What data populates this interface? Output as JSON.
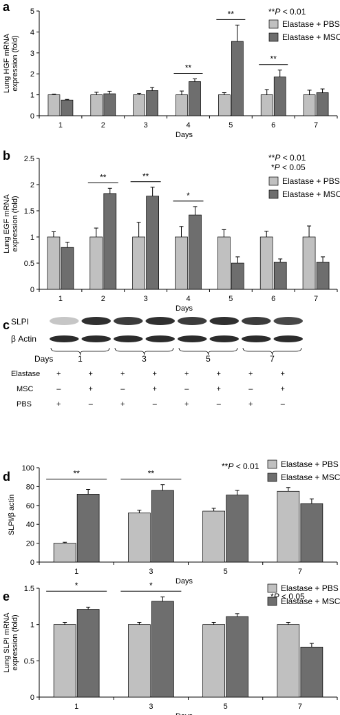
{
  "panels": {
    "a": "a",
    "b": "b",
    "c": "c",
    "d": "d",
    "e": "e"
  },
  "legend_pbs": "Elastase + PBS",
  "legend_msc": "Elastase + MSC",
  "colors": {
    "pbs": "#c0c0c0",
    "msc": "#6e6e6e",
    "blot_band": "#1a1a1a"
  },
  "blot": {
    "row_labels": [
      "SLPI",
      "β Actin"
    ],
    "days_label": "Days",
    "days": [
      "1",
      "3",
      "5",
      "7"
    ],
    "conditions": [
      {
        "name": "Elastase",
        "marks": [
          "+",
          "+",
          "+",
          "+",
          "+",
          "+",
          "+",
          "+"
        ]
      },
      {
        "name": "MSC",
        "marks": [
          "–",
          "+",
          "–",
          "+",
          "–",
          "+",
          "–",
          "+"
        ]
      },
      {
        "name": "PBS",
        "marks": [
          "+",
          "–",
          "+",
          "–",
          "+",
          "–",
          "+",
          "–"
        ]
      }
    ]
  },
  "chart_data": [
    {
      "panel": "a",
      "type": "bar",
      "ylabel": "Lung HGF mRNA expression (fold)",
      "xlabel": "Days",
      "ylim": [
        0,
        5
      ],
      "yticks": [
        "0",
        "1",
        "2",
        "3",
        "4",
        "5"
      ],
      "categories": [
        "1",
        "2",
        "3",
        "4",
        "5",
        "6",
        "7"
      ],
      "series": [
        {
          "name": "Elastase + PBS",
          "values": [
            1.0,
            1.0,
            1.0,
            1.0,
            1.0,
            1.0,
            1.0
          ],
          "errors": [
            0.03,
            0.12,
            0.07,
            0.18,
            0.1,
            0.25,
            0.22
          ]
        },
        {
          "name": "Elastase + MSC",
          "values": [
            0.75,
            1.05,
            1.2,
            1.63,
            3.55,
            1.85,
            1.1
          ],
          "errors": [
            0.03,
            0.12,
            0.15,
            0.13,
            0.78,
            0.33,
            0.18
          ]
        }
      ],
      "significance": [
        {
          "category": "4",
          "label": "**"
        },
        {
          "category": "5",
          "label": "**"
        },
        {
          "category": "6",
          "label": "**"
        }
      ],
      "pvalues": [
        "**P < 0.01"
      ]
    },
    {
      "panel": "b",
      "type": "bar",
      "ylabel": "Lung EGF mRNA expression (fold)",
      "xlabel": "Days",
      "ylim": [
        0,
        2.5
      ],
      "yticks": [
        "0",
        "0.5",
        "1",
        "1.5",
        "2",
        "2.5"
      ],
      "categories": [
        "1",
        "2",
        "3",
        "4",
        "5",
        "6",
        "7"
      ],
      "series": [
        {
          "name": "Elastase + PBS",
          "values": [
            1.0,
            1.0,
            1.0,
            1.0,
            1.0,
            1.0,
            1.0
          ],
          "errors": [
            0.1,
            0.17,
            0.28,
            0.2,
            0.14,
            0.11,
            0.21
          ]
        },
        {
          "name": "Elastase + MSC",
          "values": [
            0.8,
            1.83,
            1.78,
            1.42,
            0.5,
            0.52,
            0.52
          ],
          "errors": [
            0.1,
            0.1,
            0.17,
            0.16,
            0.12,
            0.06,
            0.1
          ]
        }
      ],
      "significance": [
        {
          "category": "2",
          "label": "**"
        },
        {
          "category": "3",
          "label": "**"
        },
        {
          "category": "4",
          "label": "*"
        }
      ],
      "pvalues": [
        "**P < 0.01",
        "*P < 0.05"
      ]
    },
    {
      "panel": "d",
      "type": "bar",
      "ylabel": "SLPI/β actin",
      "xlabel": "Days",
      "ylim": [
        0,
        100
      ],
      "yticks": [
        "0",
        "20",
        "40",
        "60",
        "80",
        "100"
      ],
      "categories": [
        "1",
        "3",
        "5",
        "7"
      ],
      "series": [
        {
          "name": "Elastase + PBS",
          "values": [
            20,
            52,
            54,
            75
          ],
          "errors": [
            1,
            3,
            3,
            4
          ]
        },
        {
          "name": "Elastase + MSC",
          "values": [
            72,
            76,
            71,
            62
          ],
          "errors": [
            5,
            6,
            5,
            5
          ]
        }
      ],
      "significance": [
        {
          "category": "1",
          "label": "**"
        },
        {
          "category": "3",
          "label": "**"
        }
      ],
      "pvalues": [
        "**P < 0.01"
      ]
    },
    {
      "panel": "e",
      "type": "bar",
      "ylabel": "Lung SLPI mRNA expression (fold)",
      "xlabel": "Days",
      "ylim": [
        0,
        1.5
      ],
      "yticks": [
        "0",
        "0.5",
        "1",
        "1.5"
      ],
      "categories": [
        "1",
        "3",
        "5",
        "7"
      ],
      "series": [
        {
          "name": "Elastase + PBS",
          "values": [
            1.0,
            1.0,
            1.0,
            1.0
          ],
          "errors": [
            0.03,
            0.03,
            0.03,
            0.03
          ]
        },
        {
          "name": "Elastase + MSC",
          "values": [
            1.21,
            1.32,
            1.11,
            0.69
          ],
          "errors": [
            0.03,
            0.06,
            0.04,
            0.05
          ]
        }
      ],
      "significance": [
        {
          "category": "1",
          "label": "*"
        },
        {
          "category": "3",
          "label": "*"
        }
      ],
      "pvalues": [
        "*P < 0.05"
      ]
    }
  ]
}
